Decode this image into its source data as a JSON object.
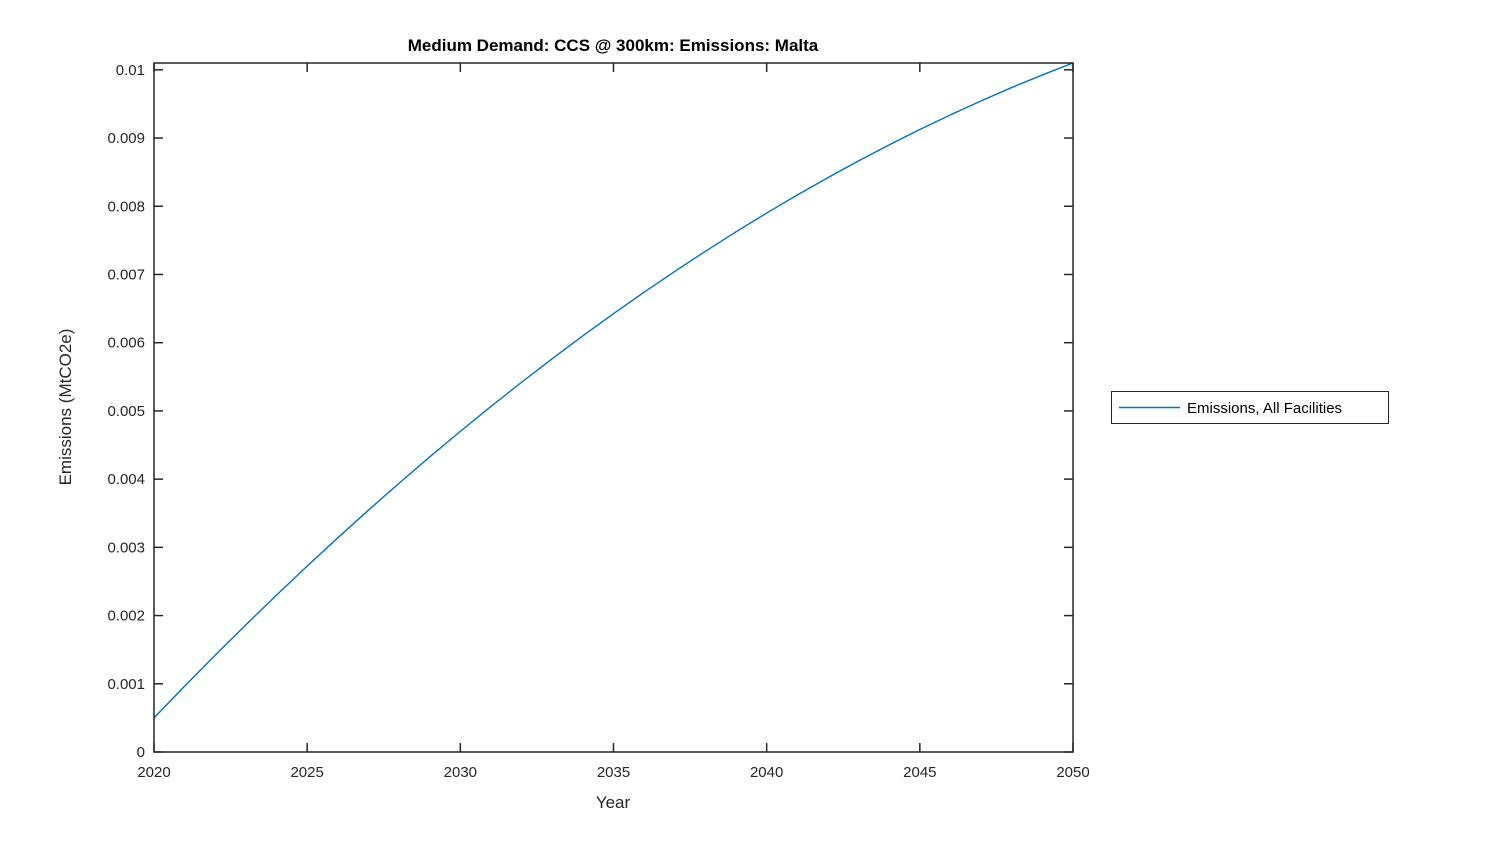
{
  "chart_data": {
    "type": "line",
    "title": "Medium Demand: CCS @ 300km: Emissions: Malta",
    "xlabel": "Year",
    "ylabel": "Emissions (MtCO2e)",
    "xlim": [
      2020,
      2050
    ],
    "ylim": [
      0,
      0.0101
    ],
    "xticks": [
      2020,
      2025,
      2030,
      2035,
      2040,
      2045,
      2050
    ],
    "xtick_labels": [
      "2020",
      "2025",
      "2030",
      "2035",
      "2040",
      "2045",
      "2050"
    ],
    "yticks": [
      0,
      0.001,
      0.002,
      0.003,
      0.004,
      0.005,
      0.006,
      0.007,
      0.008,
      0.009,
      0.01
    ],
    "ytick_labels": [
      "0",
      "0.001",
      "0.002",
      "0.003",
      "0.004",
      "0.005",
      "0.006",
      "0.007",
      "0.008",
      "0.009",
      "0.01"
    ],
    "grid": false,
    "legend": {
      "position": "outside-right",
      "entries": [
        "Emissions, All Facilities"
      ]
    },
    "series": [
      {
        "name": "Emissions, All Facilities",
        "color": "#0072BD",
        "x": [
          2020,
          2021,
          2022,
          2023,
          2024,
          2025,
          2026,
          2027,
          2028,
          2029,
          2030,
          2031,
          2032,
          2033,
          2034,
          2035,
          2036,
          2037,
          2038,
          2039,
          2040,
          2041,
          2042,
          2043,
          2044,
          2045,
          2046,
          2047,
          2048,
          2049,
          2050
        ],
        "values": [
          0.0005,
          0.000965,
          0.00142,
          0.001865,
          0.0023,
          0.002725,
          0.00314,
          0.003545,
          0.00394,
          0.004325,
          0.0047,
          0.005065,
          0.00542,
          0.005765,
          0.0061,
          0.006425,
          0.00674,
          0.007045,
          0.00734,
          0.007625,
          0.0079,
          0.008165,
          0.00842,
          0.008665,
          0.0089,
          0.009125,
          0.00934,
          0.009545,
          0.00974,
          0.009925,
          0.0101
        ]
      }
    ]
  },
  "colors": {
    "line": "#0072BD",
    "axis": "#262626",
    "background": "#ffffff"
  }
}
